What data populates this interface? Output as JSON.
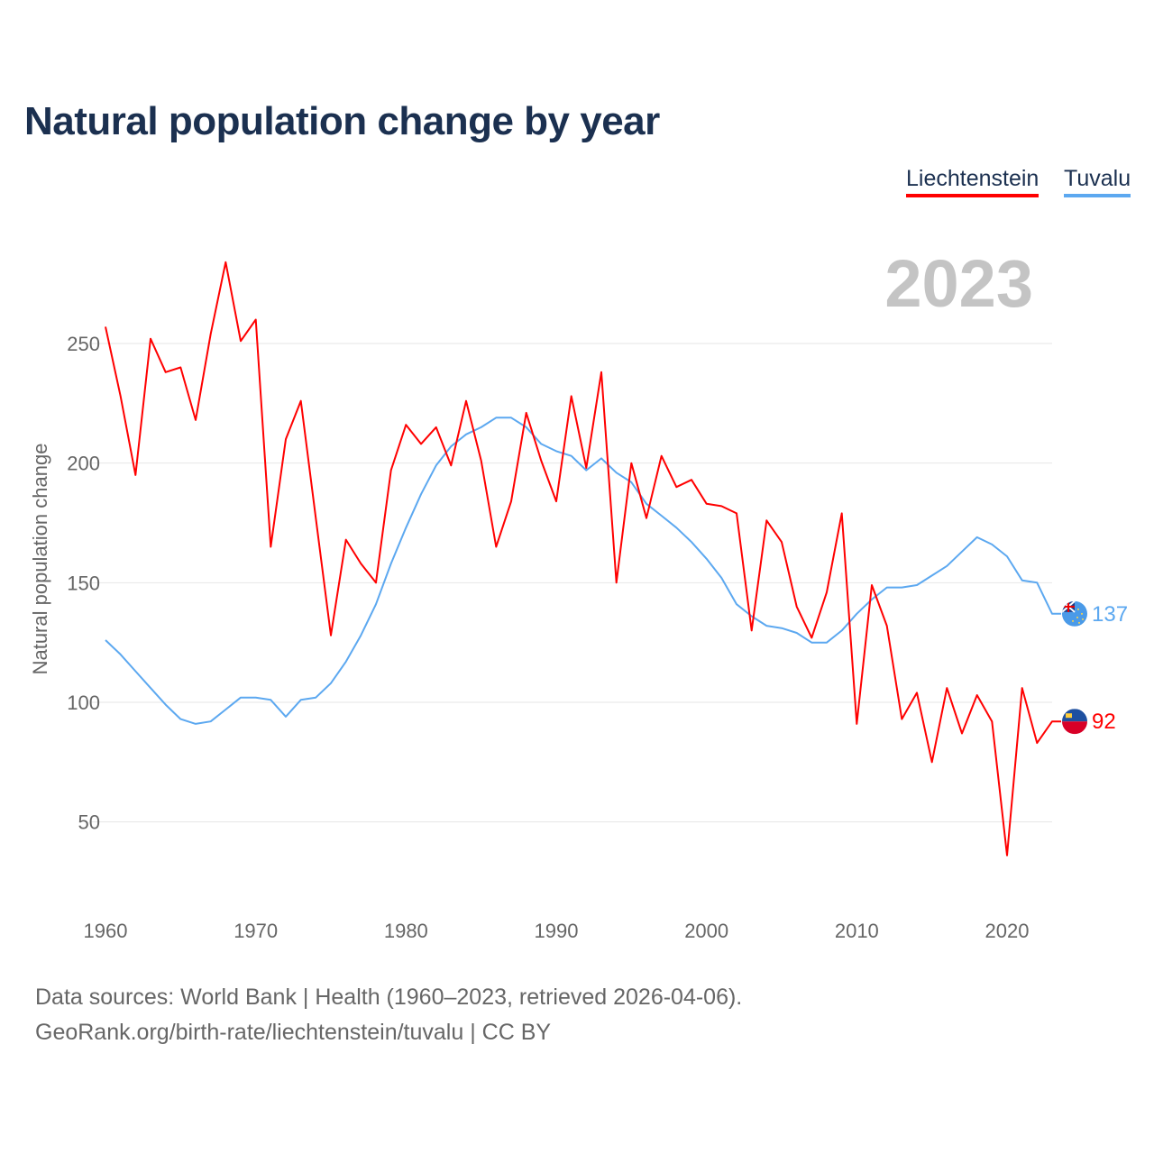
{
  "title": "Natural population change by year",
  "footer": {
    "line1": "Data sources: World Bank | Health (1960–2023, retrieved 2026-04-06).",
    "line2": "GeoRank.org/birth-rate/liechtenstein/tuvalu | CC BY"
  },
  "chart_data": {
    "type": "line",
    "title": "Natural population change by year",
    "xlabel": "",
    "ylabel": "Natural population change",
    "year_label": "2023",
    "xlim": [
      1960,
      2023
    ],
    "ylim": [
      22,
      295
    ],
    "xticks": [
      1960,
      1970,
      1980,
      1990,
      2000,
      2010,
      2020
    ],
    "yticks": [
      50,
      100,
      150,
      200,
      250
    ],
    "grid": true,
    "legend": "top-right",
    "x": [
      1960,
      1961,
      1962,
      1963,
      1964,
      1965,
      1966,
      1967,
      1968,
      1969,
      1970,
      1971,
      1972,
      1973,
      1974,
      1975,
      1976,
      1977,
      1978,
      1979,
      1980,
      1981,
      1982,
      1983,
      1984,
      1985,
      1986,
      1987,
      1988,
      1989,
      1990,
      1991,
      1992,
      1993,
      1994,
      1995,
      1996,
      1997,
      1998,
      1999,
      2000,
      2001,
      2002,
      2003,
      2004,
      2005,
      2006,
      2007,
      2008,
      2009,
      2010,
      2011,
      2012,
      2013,
      2014,
      2015,
      2016,
      2017,
      2018,
      2019,
      2020,
      2021,
      2022,
      2023
    ],
    "series": [
      {
        "name": "Liechtenstein",
        "color": "#ff0000",
        "end_label": "92",
        "flag": "liechtenstein-flag",
        "values": [
          257,
          228,
          195,
          252,
          238,
          240,
          218,
          254,
          284,
          251,
          260,
          165,
          210,
          226,
          177,
          128,
          168,
          158,
          150,
          197,
          216,
          208,
          215,
          199,
          226,
          201,
          165,
          184,
          221,
          201,
          184,
          228,
          198,
          238,
          150,
          200,
          177,
          203,
          190,
          193,
          183,
          182,
          179,
          130,
          176,
          167,
          140,
          127,
          146,
          179,
          91,
          149,
          132,
          93,
          104,
          75,
          106,
          87,
          103,
          92,
          36,
          106,
          83,
          92
        ]
      },
      {
        "name": "Tuvalu",
        "color": "#5ca8f0",
        "end_label": "137",
        "flag": "tuvalu-flag",
        "values": [
          126,
          120,
          113,
          106,
          99,
          93,
          91,
          92,
          97,
          102,
          102,
          101,
          94,
          101,
          102,
          108,
          117,
          128,
          141,
          158,
          173,
          187,
          199,
          207,
          212,
          215,
          219,
          219,
          215,
          208,
          205,
          203,
          197,
          202,
          196,
          192,
          183,
          178,
          173,
          167,
          160,
          152,
          141,
          136,
          132,
          131,
          129,
          125,
          125,
          130,
          137,
          143,
          148,
          148,
          149,
          153,
          157,
          163,
          169,
          166,
          161,
          151,
          150,
          137
        ]
      }
    ]
  }
}
